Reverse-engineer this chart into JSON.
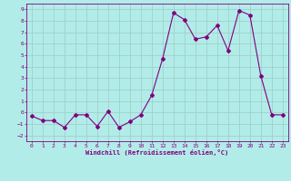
{
  "x": [
    0,
    1,
    2,
    3,
    4,
    5,
    6,
    7,
    8,
    9,
    10,
    11,
    12,
    13,
    14,
    15,
    16,
    17,
    18,
    19,
    20,
    21,
    22,
    23
  ],
  "y": [
    -0.3,
    -0.7,
    -0.7,
    -1.3,
    -0.2,
    -0.2,
    -1.2,
    0.1,
    -1.3,
    -0.8,
    -0.2,
    1.5,
    4.7,
    8.7,
    8.1,
    6.4,
    6.6,
    7.6,
    5.4,
    8.9,
    8.5,
    3.2,
    -0.2,
    -0.2
  ],
  "color": "#800080",
  "bg_color": "#b2ece8",
  "grid_color": "#a0d0cc",
  "xlabel": "Windchill (Refroidissement éolien,°C)",
  "ylim": [
    -2.5,
    9.5
  ],
  "xlim": [
    -0.5,
    23.5
  ],
  "yticks": [
    -2,
    -1,
    0,
    1,
    2,
    3,
    4,
    5,
    6,
    7,
    8,
    9
  ],
  "xticks": [
    0,
    1,
    2,
    3,
    4,
    5,
    6,
    7,
    8,
    9,
    10,
    11,
    12,
    13,
    14,
    15,
    16,
    17,
    18,
    19,
    20,
    21,
    22,
    23
  ]
}
